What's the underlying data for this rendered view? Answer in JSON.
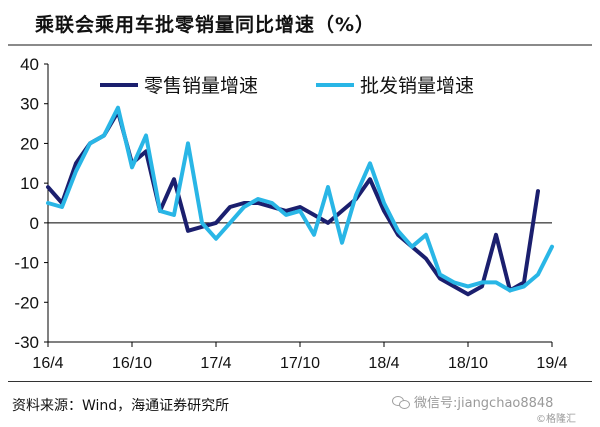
{
  "title": "乘联会乘用车批零销量同比增速（%）",
  "source": "资料来源：Wind，海通证券研究所",
  "watermark": {
    "icon": "wechat-icon",
    "text": "微信号:jiangchao8848",
    "small": "©格隆汇"
  },
  "colors": {
    "retail": "#1b1f6e",
    "wholesale": "#29b6e6",
    "axis": "#000000"
  },
  "chart_data": {
    "type": "line",
    "title": "乘联会乘用车批零销量同比增速（%）",
    "ylim": [
      -30,
      40
    ],
    "yticks": [
      -30,
      -20,
      -10,
      0,
      10,
      20,
      30,
      40
    ],
    "xticks": [
      "16/4",
      "16/10",
      "17/4",
      "17/10",
      "18/4",
      "18/10",
      "19/4"
    ],
    "xrange": [
      0,
      36
    ],
    "tick_positions": [
      0,
      6,
      12,
      18,
      24,
      30,
      36
    ],
    "grid": false,
    "legend": "top",
    "series": [
      {
        "name": "零售销量增速",
        "color": "#1b1f6e",
        "x": [
          0,
          1,
          2,
          3,
          4,
          5,
          6,
          7,
          8,
          9,
          10,
          11,
          12,
          13,
          14,
          15,
          16,
          17,
          18,
          19,
          20,
          21,
          22,
          23,
          24,
          25,
          26,
          27,
          28,
          29,
          30,
          31,
          32,
          33,
          34,
          35,
          36
        ],
        "values": [
          9,
          5,
          15,
          20,
          22,
          28,
          15,
          18,
          3,
          11,
          -2,
          -1,
          0,
          4,
          5,
          5,
          4,
          3,
          4,
          2,
          0,
          3,
          6,
          11,
          3,
          -3,
          -6,
          -9,
          -14,
          -16,
          -18,
          -16,
          -3,
          -17,
          -15,
          8,
          null
        ]
      },
      {
        "name": "批发销量增速",
        "color": "#29b6e6",
        "x": [
          0,
          1,
          2,
          3,
          4,
          5,
          6,
          7,
          8,
          9,
          10,
          11,
          12,
          13,
          14,
          15,
          16,
          17,
          18,
          19,
          20,
          21,
          22,
          23,
          24,
          25,
          26,
          27,
          28,
          29,
          30,
          31,
          32,
          33,
          34,
          35,
          36
        ],
        "values": [
          5,
          4,
          13,
          20,
          22,
          29,
          14,
          22,
          3,
          2,
          20,
          0,
          -4,
          0,
          4,
          6,
          5,
          2,
          3,
          -3,
          9,
          -5,
          7,
          15,
          5,
          -2,
          -6,
          -3,
          -13,
          -15,
          -16,
          -15,
          -15,
          -17,
          -16,
          -13,
          -6
        ]
      }
    ]
  }
}
